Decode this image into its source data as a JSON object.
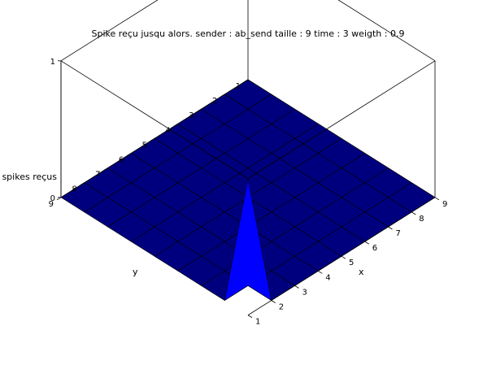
{
  "chart_data": {
    "type": "surface3d",
    "title": "Spike reçu jusqu alors. sender : ab_send taille : 9 time : 3 weigth : 0.9",
    "xlabel": "x",
    "ylabel": "y",
    "zlabel": "spikes reçus",
    "x_ticks": [
      "1",
      "2",
      "3",
      "4",
      "5",
      "6",
      "7",
      "8",
      "9"
    ],
    "y_ticks": [
      "1",
      "2",
      "3",
      "4",
      "5",
      "6",
      "7",
      "8",
      "9"
    ],
    "z_ticks": [
      "0",
      "1"
    ],
    "z_range": [
      0,
      1
    ],
    "grid": [
      [
        0,
        0,
        0,
        0,
        0,
        0,
        0,
        0,
        0
      ],
      [
        0,
        0,
        0,
        0,
        0,
        0,
        0,
        0,
        0
      ],
      [
        0,
        0,
        0,
        0,
        0,
        0,
        0,
        0,
        0
      ],
      [
        0,
        0,
        0,
        0,
        0,
        0,
        0,
        0,
        0
      ],
      [
        0,
        0,
        0,
        0,
        0,
        0,
        0,
        0,
        0
      ],
      [
        0,
        0,
        0,
        0,
        0,
        0,
        0,
        0,
        0
      ],
      [
        0,
        0,
        0,
        0,
        0,
        0,
        0,
        0,
        0
      ],
      [
        0,
        0,
        0,
        0,
        0,
        0,
        0,
        0,
        0
      ],
      [
        0,
        0,
        0,
        0,
        0,
        0,
        0,
        0,
        1
      ]
    ],
    "colormap": [
      "#00007f",
      "#0000ff",
      "#00ffff",
      "#ffff00"
    ]
  }
}
